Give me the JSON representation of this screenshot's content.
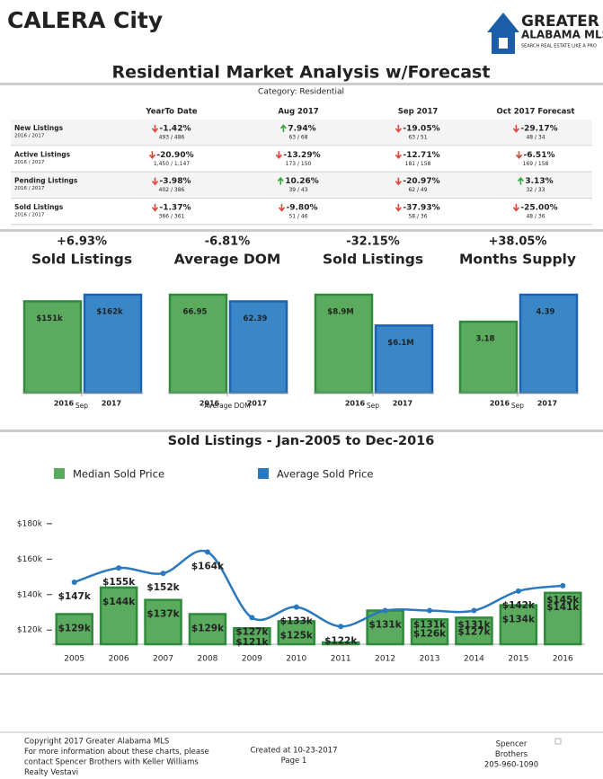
{
  "header": {
    "city": "CALERA City",
    "title": "Residential Market Analysis w/Forecast",
    "category": "Category: Residential"
  },
  "logo": {
    "line1": "GREATER",
    "line2": "ALABAMA MLS",
    "tagline": "SEARCH REAL ESTATE LIKE A PRO"
  },
  "table": {
    "columns": [
      "YearTo Date",
      "Aug 2017",
      "Sep 2017",
      "Oct 2017 Forecast"
    ],
    "rows": [
      {
        "label": "New Listings",
        "sub": "2016 / 2017",
        "cells": [
          {
            "change": "-1.42%",
            "detail": "493 / 486"
          },
          {
            "change": "7.94%",
            "detail": "63 / 68"
          },
          {
            "change": "-19.05%",
            "detail": "63 / 51"
          },
          {
            "change": "-29.17%",
            "detail": "48 / 34"
          }
        ]
      },
      {
        "label": "Active Listings",
        "sub": "2016 / 2017",
        "cells": [
          {
            "change": "-20.90%",
            "detail": "1,450 / 1,147"
          },
          {
            "change": "-13.29%",
            "detail": "173 / 150"
          },
          {
            "change": "-12.71%",
            "detail": "181 / 158"
          },
          {
            "change": "-6.51%",
            "detail": "169 / 158"
          }
        ]
      },
      {
        "label": "Pending Listings",
        "sub": "2016 / 2017",
        "cells": [
          {
            "change": "-3.98%",
            "detail": "402 / 386"
          },
          {
            "change": "10.26%",
            "detail": "39 / 43"
          },
          {
            "change": "-20.97%",
            "detail": "62 / 49"
          },
          {
            "change": "3.13%",
            "detail": "32 / 33"
          }
        ]
      },
      {
        "label": "Sold Listings",
        "sub": "2016 / 2017",
        "cells": [
          {
            "change": "-1.37%",
            "detail": "366 / 361"
          },
          {
            "change": "-9.80%",
            "detail": "51 / 46"
          },
          {
            "change": "-37.93%",
            "detail": "58 / 36"
          },
          {
            "change": "-25.00%",
            "detail": "48 / 36"
          }
        ]
      }
    ]
  },
  "chart_data": [
    {
      "type": "bar",
      "change": "+6.93%",
      "title": "Sold Listings",
      "categories": [
        "2016",
        "2017"
      ],
      "values": [
        151,
        162
      ],
      "value_labels": [
        "$151k",
        "$162k"
      ],
      "xlabel": "Sep",
      "colors": [
        "#5aab5e",
        "#3a87c8"
      ]
    },
    {
      "type": "bar",
      "change": "-6.81%",
      "title": "Average DOM",
      "categories": [
        "2016",
        "2017"
      ],
      "values": [
        66.95,
        62.39
      ],
      "xlabel": "Average DOM",
      "colors": [
        "#5aab5e",
        "#3a87c8"
      ]
    },
    {
      "type": "bar",
      "change": "-32.15%",
      "title": "Sold Listings",
      "categories": [
        "2016",
        "2017"
      ],
      "values": [
        8.9,
        6.1
      ],
      "value_labels": [
        "$8.9M",
        "$6.1M"
      ],
      "xlabel": "Sep",
      "colors": [
        "#5aab5e",
        "#3a87c8"
      ]
    },
    {
      "type": "bar",
      "change": "+38.05%",
      "title": "Months Supply",
      "categories": [
        "2016",
        "2017"
      ],
      "values": [
        3.18,
        4.39
      ],
      "xlabel": "Sep",
      "colors": [
        "#5aab5e",
        "#3a87c8"
      ]
    },
    {
      "type": "combo",
      "title": "Sold Listings - Jan-2005 to Dec-2016",
      "categories": [
        "2005",
        "2006",
        "2007",
        "2008",
        "2009",
        "2010",
        "2011",
        "2012",
        "2013",
        "2014",
        "2015",
        "2016"
      ],
      "series": [
        {
          "name": "Median Sold Price",
          "color": "#5aab5e",
          "kind": "bar",
          "values": [
            129,
            144,
            137,
            129,
            121,
            125,
            113,
            131,
            126,
            127,
            134,
            141
          ],
          "value_labels": [
            "$129k",
            "$144k",
            "$137k",
            "$129k",
            "$121k",
            "$125k",
            null,
            "$131k",
            "$126k",
            "$127k",
            "$134k",
            "$141k"
          ]
        },
        {
          "name": "Average Sold Price",
          "color": "#2a78be",
          "kind": "line",
          "values": [
            147,
            155,
            152,
            164,
            127,
            133,
            122,
            131,
            131,
            131,
            142,
            145
          ],
          "value_labels": [
            "$147k",
            "$155k",
            "$152k",
            "$164k",
            "$127k",
            "$133k",
            "$122k",
            null,
            "$131k",
            "$131k",
            "$142k",
            "$145k"
          ]
        }
      ],
      "ylim": [
        112,
        185
      ],
      "yticks": [
        {
          "value": 120,
          "label": "$120k"
        },
        {
          "value": 140,
          "label": "$140k"
        },
        {
          "value": 160,
          "label": "$160k"
        },
        {
          "value": 180,
          "label": "$180k"
        }
      ]
    }
  ],
  "footer": {
    "left": [
      "Copyright 2017 Greater Alabama MLS",
      "For more information about these charts, please",
      "contact Spencer Brothers with Keller Williams",
      "Realty Vestavi"
    ],
    "center": [
      "Created at 10-23-2017",
      "Page 1"
    ],
    "right": [
      "Spencer",
      "Brothers",
      "205-960-1090"
    ]
  }
}
